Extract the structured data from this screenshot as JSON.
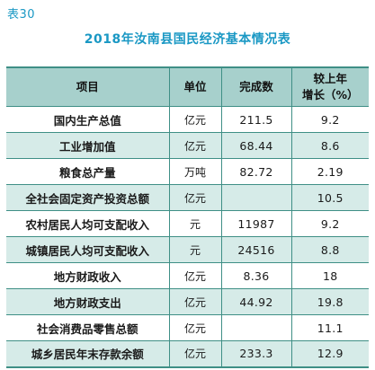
{
  "table_label": "表30",
  "title": "2018年汝南县国民经济基本情况表",
  "headers": {
    "item": "项目",
    "unit": "单位",
    "completed": "完成数",
    "growth_line1": "较上年",
    "growth_line2": "增长（%）"
  },
  "rows": [
    {
      "item": "国内生产总值",
      "unit": "亿元",
      "completed": "211.5",
      "growth": "9.2"
    },
    {
      "item": "工业增加值",
      "unit": "亿元",
      "completed": "68.44",
      "growth": "8.6"
    },
    {
      "item": "粮食总产量",
      "unit": "万吨",
      "completed": "82.72",
      "growth": "2.19"
    },
    {
      "item": "全社会固定资产投资总额",
      "unit": "亿元",
      "completed": "",
      "growth": "10.5"
    },
    {
      "item": "农村居民人均可支配收入",
      "unit": "元",
      "completed": "11987",
      "growth": "9.2"
    },
    {
      "item": "城镇居民人均可支配收入",
      "unit": "元",
      "completed": "24516",
      "growth": "8.8"
    },
    {
      "item": "地方财政收入",
      "unit": "亿元",
      "completed": "8.36",
      "growth": "18"
    },
    {
      "item": "地方财政支出",
      "unit": "亿元",
      "completed": "44.92",
      "growth": "19.8"
    },
    {
      "item": "社会消费品零售总额",
      "unit": "亿元",
      "completed": "",
      "growth": "11.1"
    },
    {
      "item": "城乡居民年末存款余额",
      "unit": "亿元",
      "completed": "233.3",
      "growth": "12.9"
    }
  ],
  "colors": {
    "accent": "#1a98c4",
    "header_bg": "#a7d0cc",
    "stripe_bg": "#d6ebe8",
    "rule": "#3f8f86"
  }
}
